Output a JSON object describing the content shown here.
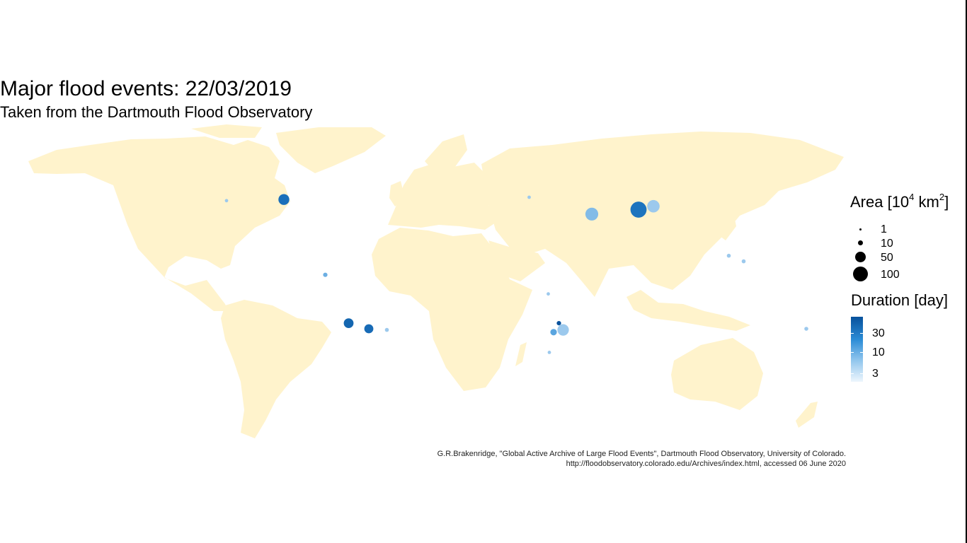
{
  "title": "Major flood events: 22/03/2019",
  "subtitle": "Taken from the Dartmouth Flood Observatory",
  "legend_area": {
    "title": "Area [10",
    "exp1": "4",
    "mid": " km",
    "exp2": "2",
    "end": "]",
    "items": [
      {
        "label": "1",
        "value": 1
      },
      {
        "label": "10",
        "value": 10
      },
      {
        "label": "50",
        "value": 50
      },
      {
        "label": "100",
        "value": 100
      }
    ]
  },
  "legend_duration": {
    "title": "Duration [day]",
    "ticks": [
      "30",
      "10",
      "3"
    ],
    "colors": {
      "high": "#08519c",
      "mid": "#2b8cd6",
      "low": "#eef6fd"
    }
  },
  "caption_line1": "G.R.Brakenridge, \"Global Active Archive of Large Flood Events\", Dartmouth Flood Observatory, University of Colorado.",
  "caption_line2": "http://floodobservatory.colorado.edu/Archives/index.html, accessed 06 June 2020",
  "land_color": "#fff3cc",
  "events": [
    {
      "region": "central-us",
      "lon": -95,
      "lat": 38,
      "area": 40,
      "duration": 20
    },
    {
      "region": "california",
      "lon": -122,
      "lat": 37.5,
      "area": 1,
      "duration": 4
    },
    {
      "region": "colombia",
      "lon": -75.5,
      "lat": 4.5,
      "area": 3,
      "duration": 6
    },
    {
      "region": "bolivia",
      "lon": -64.5,
      "lat": -17,
      "area": 30,
      "duration": 25
    },
    {
      "region": "paraguay",
      "lon": -55,
      "lat": -19.5,
      "area": 25,
      "duration": 22
    },
    {
      "region": "brazil-south",
      "lon": -46.5,
      "lat": -20,
      "area": 2,
      "duration": 4
    },
    {
      "region": "iran",
      "lon": 50,
      "lat": 31.5,
      "area": 60,
      "duration": 5
    },
    {
      "region": "persian-gulf",
      "lon": 72,
      "lat": 33.5,
      "area": 100,
      "duration": 18
    },
    {
      "region": "afghanistan",
      "lon": 79,
      "lat": 35,
      "area": 55,
      "duration": 4
    },
    {
      "region": "mozambique",
      "lon": 34.5,
      "lat": -17,
      "area": 3,
      "duration": 40
    },
    {
      "region": "zimbabwe",
      "lon": 36.5,
      "lat": -20,
      "area": 45,
      "duration": 4
    },
    {
      "region": "zimbabwe-west",
      "lon": 32,
      "lat": -21,
      "area": 10,
      "duration": 7
    },
    {
      "region": "greece",
      "lon": 20.5,
      "lat": 39,
      "area": 1,
      "duration": 4
    },
    {
      "region": "east-africa",
      "lon": 29.5,
      "lat": -4,
      "area": 1,
      "duration": 4
    },
    {
      "region": "south-africa",
      "lon": 30,
      "lat": -30,
      "area": 1,
      "duration": 4
    },
    {
      "region": "philippines",
      "lon": 121.5,
      "lat": 10.5,
      "area": 2,
      "duration": 4
    },
    {
      "region": "brunei",
      "lon": 114.5,
      "lat": 13,
      "area": 2,
      "duration": 4
    },
    {
      "region": "queensland",
      "lon": 151,
      "lat": -19.5,
      "area": 2,
      "duration": 4
    }
  ]
}
